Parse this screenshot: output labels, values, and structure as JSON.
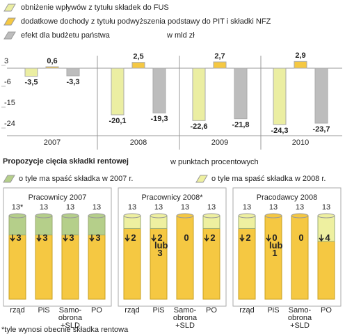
{
  "chart_data": [
    {
      "type": "bar",
      "unit": "w mld zł",
      "categories": [
        "2007",
        "2008",
        "2009",
        "2010"
      ],
      "series": [
        {
          "name": "obniżenie wpływów z tytułu składek do FUS",
          "color": "#ebeea2",
          "values": [
            -3.5,
            -20.1,
            -22.6,
            -24.3
          ],
          "value_labels": [
            "-3,5",
            "-20,1",
            "-22,6",
            "-24,3"
          ]
        },
        {
          "name": "dodatkowe dochody z tytułu podwyższenia podstawy do PIT i składki NFZ",
          "color": "#f5c842",
          "values": [
            0.6,
            2.5,
            2.7,
            2.9
          ],
          "value_labels": [
            "0,6",
            "2,5",
            "2,7",
            "2,9"
          ]
        },
        {
          "name": "efekt dla budżetu państwa",
          "color": "#bdbdbd",
          "values": [
            -3.3,
            -19.3,
            -21.8,
            -23.7
          ],
          "value_labels": [
            "-3,3",
            "-19,3",
            "-21,8",
            "-23,7"
          ]
        }
      ],
      "ylim": [
        -27,
        6
      ],
      "yticks": [
        3,
        -6,
        -15,
        -24
      ]
    },
    {
      "type": "cylinder",
      "title": "Pracownicy 2007",
      "categories": [
        "rząd",
        "PiS",
        "Samo-obrona +SLD",
        "PO"
      ],
      "totals": [
        13,
        13,
        13,
        13
      ],
      "total_labels": [
        "13*",
        "13",
        "13",
        "13"
      ],
      "values": [
        3,
        3,
        3,
        3
      ],
      "value_labels": [
        "3",
        "3",
        "3",
        "3"
      ],
      "color": "#b5cf8a",
      "base_color": "#f5c842",
      "ylim": [
        0,
        13
      ]
    },
    {
      "type": "cylinder",
      "title": "Pracownicy 2008*",
      "categories": [
        "rząd",
        "PiS",
        "Samo-obrona +SLD",
        "PO"
      ],
      "totals": [
        13,
        13,
        13,
        13
      ],
      "total_labels": [
        "13",
        "13",
        "13",
        "13"
      ],
      "values": [
        2,
        2,
        0,
        2
      ],
      "value_labels": [
        "2",
        "2 lub 3",
        "0",
        "2"
      ],
      "color": "#eef0a0",
      "base_color": "#f5c842",
      "ylim": [
        0,
        13
      ]
    },
    {
      "type": "cylinder",
      "title": "Pracodawcy 2008",
      "categories": [
        "rząd",
        "PiS",
        "Samo-obrona +SLD",
        "PO"
      ],
      "totals": [
        13,
        13,
        13,
        13
      ],
      "total_labels": [
        "13",
        "13",
        "13",
        "13"
      ],
      "values": [
        2,
        0,
        0,
        4
      ],
      "value_labels": [
        "2",
        "0 lub 1",
        "0",
        "4"
      ],
      "color": "#eef0a0",
      "base_color": "#f5c842",
      "ylim": [
        0,
        13
      ]
    }
  ],
  "section": {
    "title": "Propozycje cięcia składki rentowej",
    "unit": "w punktach procentowych",
    "legend": [
      {
        "name": "o tyle ma spaść składka w 2007 r.",
        "color": "#b5cf8a"
      },
      {
        "name": "o tyle ma spaść składka w 2008 r.",
        "color": "#eef0a0"
      }
    ]
  },
  "footnote": "*tyle wynosi obecnie składka rentowa"
}
